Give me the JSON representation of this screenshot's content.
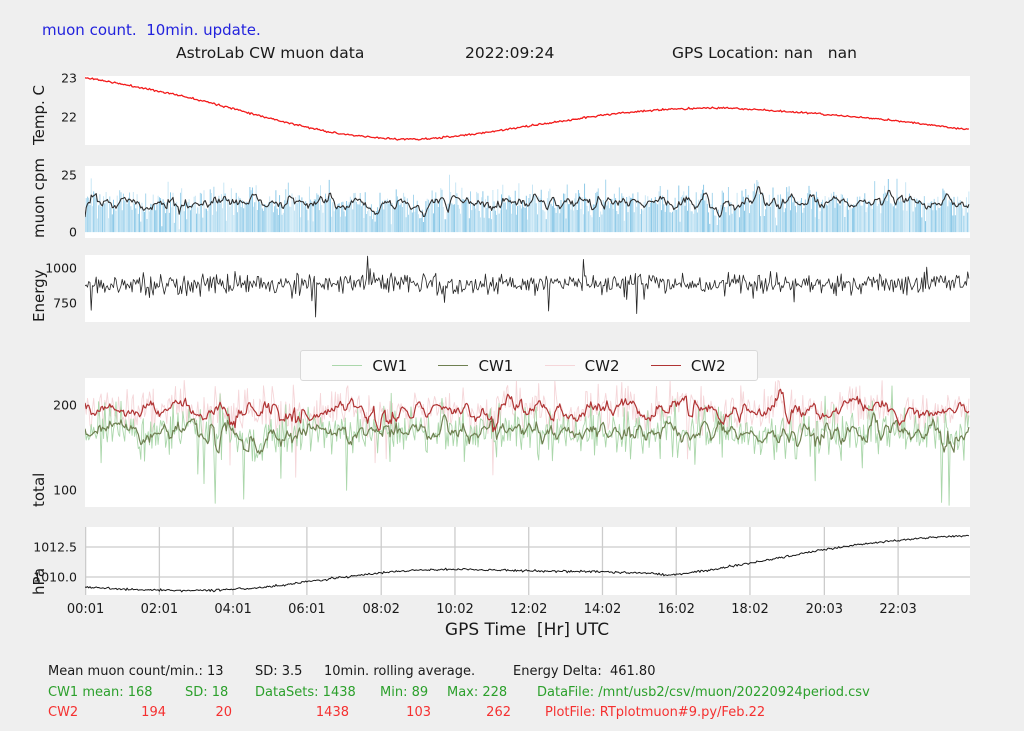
{
  "header": {
    "note": "muon count.  10min. update.",
    "title": "AstroLab CW muon data",
    "datetime": "2022:09:24",
    "gps": "GPS Location: nan   nan"
  },
  "xaxis": {
    "label": "GPS Time  [Hr] UTC",
    "ticks": [
      "00:01",
      "02:01",
      "04:01",
      "06:01",
      "08:02",
      "10:02",
      "12:02",
      "14:02",
      "16:02",
      "18:02",
      "20:03",
      "22:03"
    ],
    "hours": [
      0.017,
      2.017,
      4.017,
      6.017,
      8.033,
      10.033,
      12.033,
      14.033,
      16.033,
      18.033,
      20.05,
      22.05
    ]
  },
  "legend": [
    {
      "label": "CW1",
      "color": "#abd7ab"
    },
    {
      "label": "CW1",
      "color": "#6f8051"
    },
    {
      "label": "CW2",
      "color": "#f5d6d9"
    },
    {
      "label": "CW2",
      "color": "#b03434"
    }
  ],
  "footer": {
    "black": {
      "mean": "Mean muon count/min.: 13",
      "sd": "SD: 3.5",
      "rolling": "10min. rolling average.",
      "energy_delta": "Energy Delta:  461.80"
    },
    "cw1": {
      "mean": "CW1 mean: 168",
      "sd": "SD: 18",
      "datasets": "DataSets: 1438",
      "min": "Min: 89",
      "max": "Max: 228",
      "datafile": "DataFile: /mnt/usb2/csv/muon/20220924period.csv"
    },
    "cw2": {
      "name": "CW2",
      "mean": "194",
      "sd": "20",
      "datasets": "1438",
      "min": "103",
      "max": "262",
      "plotfile": "PlotFile: RTplotmuon#9.py/Feb.22"
    }
  },
  "colors": {
    "figure_bg": "#efefef",
    "panel_bg": "#ffffff",
    "note_blue": "#2222dd",
    "footer_green": "#2ca02c",
    "footer_red": "#f53030",
    "text": "#1a1a1a",
    "grid": "#cccccc"
  },
  "chart_data": [
    {
      "id": "temperature",
      "type": "keyline",
      "ylabel": "Temp. C",
      "ylim": [
        21.28,
        23.05
      ],
      "yticks": [
        {
          "v": 23,
          "label": "23"
        },
        {
          "v": 22,
          "label": "22"
        }
      ],
      "series": [
        {
          "name": "Temp. C",
          "color": "#f21b1b",
          "width": 1.3,
          "noise": 0.012,
          "seed": 11,
          "keypoints": [
            [
              0,
              23.0
            ],
            [
              1,
              22.84
            ],
            [
              2,
              22.66
            ],
            [
              3,
              22.46
            ],
            [
              4,
              22.22
            ],
            [
              5,
              21.97
            ],
            [
              6,
              21.74
            ],
            [
              7,
              21.56
            ],
            [
              8,
              21.46
            ],
            [
              9,
              21.43
            ],
            [
              10,
              21.5
            ],
            [
              11,
              21.62
            ],
            [
              12,
              21.76
            ],
            [
              13,
              21.9
            ],
            [
              14,
              22.04
            ],
            [
              15,
              22.14
            ],
            [
              16,
              22.2
            ],
            [
              17,
              22.23
            ],
            [
              18,
              22.2
            ],
            [
              19,
              22.14
            ],
            [
              20,
              22.07
            ],
            [
              21,
              21.99
            ],
            [
              22,
              21.9
            ],
            [
              23,
              21.79
            ],
            [
              24,
              21.68
            ]
          ]
        }
      ]
    },
    {
      "id": "muon_cpm",
      "type": "bars+rolling",
      "ylabel": "muon cpm",
      "ylim": [
        -2.6,
        29
      ],
      "yticks": [
        {
          "v": 25,
          "label": "25"
        },
        {
          "v": 0,
          "label": "0"
        }
      ],
      "bars": {
        "n": 714,
        "mean": 12.8,
        "sd": 4.0,
        "min": 1.2,
        "max": 28,
        "spike_prob": 0.008,
        "drift": 0.7,
        "drift_freq": 2.1,
        "seed": 23,
        "colors": [
          "#9ed2ec",
          "#82c4e5",
          "#c3e4f4"
        ],
        "width": 0.9
      },
      "rolling": {
        "window": 5,
        "color": "#2f2f2f",
        "width": 1.1
      }
    },
    {
      "id": "energy",
      "type": "noisy-line",
      "ylabel": "Energy",
      "ylim": [
        614,
        1093
      ],
      "yticks": [
        {
          "v": 1000,
          "label": "1000"
        },
        {
          "v": 750,
          "label": "750"
        }
      ],
      "series": [
        {
          "name": "Energy",
          "color": "#262626",
          "width": 0.8,
          "n": 714,
          "mean": 888,
          "sd": 36,
          "down_spike_prob": 0.012,
          "up_spike_prob": 0.006,
          "seed": 47,
          "clip": [
            620,
            1085
          ]
        }
      ]
    },
    {
      "id": "total",
      "type": "raw+rolling-multi",
      "ylabel": "total",
      "ylim": [
        80,
        231.8
      ],
      "yticks": [
        {
          "v": 200,
          "label": "200"
        },
        {
          "v": 100,
          "label": "100"
        }
      ],
      "window": 5,
      "n": 714,
      "series": [
        {
          "name": "CW2",
          "mean": 194,
          "sd": 13,
          "raw_color": "#f5d6d9",
          "avg_color": "#b03434",
          "seed": 71,
          "drift": 4,
          "drift_freq": 2.7,
          "drift_phase": 1.3,
          "down_spike_prob": 0.006,
          "up_spike_prob": 0.01
        },
        {
          "name": "CW1",
          "mean": 168,
          "sd": 15,
          "raw_color": "#abd7ab",
          "avg_color": "#6f8051",
          "seed": 83,
          "drift": 4,
          "drift_freq": 2.3,
          "drift_phase": 0.2,
          "down_spike_prob": 0.014,
          "up_spike_prob": 0.004
        }
      ]
    },
    {
      "id": "pressure",
      "type": "keyline",
      "ylabel": "hPa",
      "ylim": [
        1008.5,
        1014.17
      ],
      "yticks": [
        {
          "v": 1012.5,
          "label": "1012.5"
        },
        {
          "v": 1010.0,
          "label": "1010.0"
        }
      ],
      "grid": true,
      "grid_y": [
        1012.5,
        1010.0
      ],
      "series": [
        {
          "name": "hPa",
          "color": "#161616",
          "width": 1.0,
          "noise": 0.05,
          "seed": 5,
          "keypoints": [
            [
              0,
              1009.15
            ],
            [
              1,
              1009.0
            ],
            [
              2,
              1008.92
            ],
            [
              3,
              1008.88
            ],
            [
              4,
              1008.97
            ],
            [
              5,
              1009.2
            ],
            [
              6,
              1009.6
            ],
            [
              7,
              1010.0
            ],
            [
              8,
              1010.35
            ],
            [
              9,
              1010.55
            ],
            [
              10,
              1010.63
            ],
            [
              11,
              1010.58
            ],
            [
              12,
              1010.52
            ],
            [
              13,
              1010.48
            ],
            [
              14,
              1010.45
            ],
            [
              15,
              1010.35
            ],
            [
              16,
              1010.22
            ],
            [
              17,
              1010.6
            ],
            [
              18,
              1011.15
            ],
            [
              19,
              1011.7
            ],
            [
              20,
              1012.25
            ],
            [
              21,
              1012.7
            ],
            [
              22,
              1013.05
            ],
            [
              23,
              1013.3
            ],
            [
              24,
              1013.45
            ]
          ]
        }
      ]
    }
  ]
}
